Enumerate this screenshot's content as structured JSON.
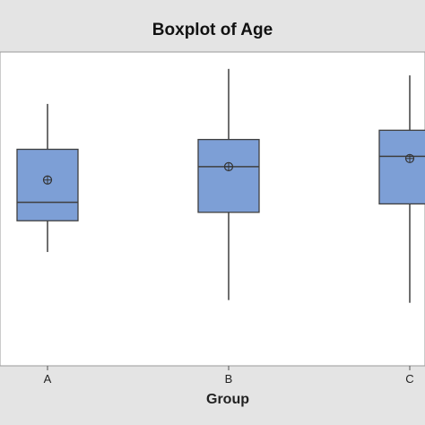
{
  "chart_data": {
    "type": "boxplot",
    "title": "Boxplot of Age",
    "xlabel": "Group",
    "ylabel": "",
    "categories": [
      "A",
      "B",
      "C"
    ],
    "ylim": [
      0,
      100
    ],
    "boxes": [
      {
        "category": "A",
        "whisker_low": 32,
        "q1": 43.5,
        "median": 50.3,
        "q3": 69.8,
        "whisker_high": 86.5,
        "mean": 58.5
      },
      {
        "category": "B",
        "whisker_low": 14.3,
        "q1": 46.6,
        "median": 63.4,
        "q3": 73.4,
        "whisker_high": 99.4,
        "mean": 63.4
      },
      {
        "category": "C",
        "whisker_low": 13.3,
        "q1": 49.7,
        "median": 67.2,
        "q3": 76.8,
        "whisker_high": 97.0,
        "mean": 66.4
      }
    ],
    "grid": false,
    "colors": {
      "box_fill": "#7d9fd6",
      "box_stroke": "#3f3f3f",
      "whisker": "#3f3f3f",
      "panel_bg": "#e4e4e4",
      "plot_bg": "#ffffff"
    }
  }
}
